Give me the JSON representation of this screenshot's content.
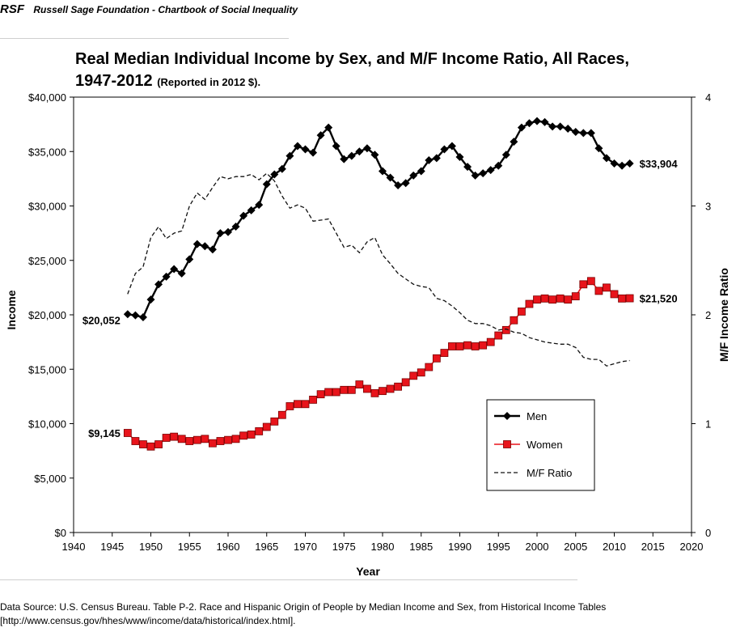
{
  "header": {
    "logo": "RSF",
    "title": "Russell Sage Foundation - Chartbook of Social Inequality"
  },
  "chart_data": {
    "type": "line",
    "title": "Real Median Individual Income by Sex, and M/F Income Ratio, All Races, 1947-2012",
    "subtitle": "(Reported in 2012 $).",
    "xlabel": "Year",
    "ylabel": "Income",
    "y2label": "M/F Income Ratio",
    "xlim": [
      1940,
      2020
    ],
    "ylim": [
      0,
      40000
    ],
    "y2lim": [
      0,
      4
    ],
    "xticks": [
      "1940",
      "1945",
      "1950",
      "1955",
      "1960",
      "1965",
      "1970",
      "1975",
      "1980",
      "1985",
      "1990",
      "1995",
      "2000",
      "2005",
      "2010",
      "2015",
      "2020"
    ],
    "yticks": [
      "$0",
      "$5,000",
      "$10,000",
      "$15,000",
      "$20,000",
      "$25,000",
      "$30,000",
      "$35,000",
      "$40,000"
    ],
    "y2ticks": [
      "0",
      "1",
      "2",
      "3",
      "4"
    ],
    "legend_position": "lower-right",
    "x": [
      1947,
      1948,
      1949,
      1950,
      1951,
      1952,
      1953,
      1954,
      1955,
      1956,
      1957,
      1958,
      1959,
      1960,
      1961,
      1962,
      1963,
      1964,
      1965,
      1966,
      1967,
      1968,
      1969,
      1970,
      1971,
      1972,
      1973,
      1974,
      1975,
      1976,
      1977,
      1978,
      1979,
      1980,
      1981,
      1982,
      1983,
      1984,
      1985,
      1986,
      1987,
      1988,
      1989,
      1990,
      1991,
      1992,
      1993,
      1994,
      1995,
      1996,
      1997,
      1998,
      1999,
      2000,
      2001,
      2002,
      2003,
      2004,
      2005,
      2006,
      2007,
      2008,
      2009,
      2010,
      2011,
      2012
    ],
    "series": [
      {
        "name": "Men",
        "color": "#000000",
        "marker": "diamond",
        "values": [
          20052,
          19950,
          19780,
          21400,
          22800,
          23500,
          24200,
          23800,
          25100,
          26500,
          26300,
          26000,
          27500,
          27600,
          28100,
          29100,
          29600,
          30100,
          32000,
          32900,
          33400,
          34600,
          35500,
          35200,
          34900,
          36500,
          37200,
          35500,
          34300,
          34600,
          35000,
          35300,
          34700,
          33200,
          32600,
          31900,
          32100,
          32800,
          33200,
          34200,
          34400,
          35200,
          35500,
          34500,
          33600,
          32800,
          33000,
          33300,
          33700,
          34700,
          35900,
          37200,
          37600,
          37800,
          37700,
          37300,
          37300,
          37100,
          36800,
          36700,
          36700,
          35300,
          34400,
          33900,
          33700,
          33904
        ]
      },
      {
        "name": "Women",
        "color": "#e8141b",
        "marker": "square",
        "values": [
          9145,
          8400,
          8100,
          7900,
          8100,
          8700,
          8800,
          8600,
          8400,
          8500,
          8600,
          8200,
          8400,
          8500,
          8600,
          8900,
          9000,
          9300,
          9700,
          10200,
          10800,
          11600,
          11800,
          11800,
          12200,
          12700,
          12900,
          12900,
          13100,
          13100,
          13600,
          13200,
          12800,
          13000,
          13200,
          13400,
          13800,
          14400,
          14700,
          15200,
          16000,
          16500,
          17100,
          17100,
          17200,
          17100,
          17200,
          17500,
          18100,
          18600,
          19500,
          20300,
          21000,
          21400,
          21500,
          21400,
          21500,
          21400,
          21700,
          22800,
          23100,
          22200,
          22500,
          21900,
          21500,
          21520
        ]
      },
      {
        "name": "M/F Ratio",
        "color": "#000000",
        "style": "dashed",
        "values": [
          2.19,
          2.38,
          2.44,
          2.71,
          2.81,
          2.7,
          2.75,
          2.77,
          3.0,
          3.12,
          3.06,
          3.17,
          3.27,
          3.25,
          3.27,
          3.27,
          3.29,
          3.24,
          3.3,
          3.23,
          3.09,
          2.98,
          3.01,
          2.98,
          2.86,
          2.87,
          2.88,
          2.75,
          2.62,
          2.64,
          2.57,
          2.67,
          2.71,
          2.55,
          2.47,
          2.38,
          2.33,
          2.28,
          2.26,
          2.25,
          2.15,
          2.13,
          2.08,
          2.02,
          1.95,
          1.92,
          1.92,
          1.9,
          1.86,
          1.87,
          1.84,
          1.83,
          1.79,
          1.77,
          1.75,
          1.74,
          1.73,
          1.73,
          1.7,
          1.61,
          1.59,
          1.59,
          1.53,
          1.55,
          1.57,
          1.58
        ]
      }
    ],
    "annotations": [
      {
        "text": "$20,052",
        "x": 1947,
        "y": 20052,
        "anchor": "left"
      },
      {
        "text": "$33,904",
        "x": 2012,
        "y": 33904,
        "anchor": "right"
      },
      {
        "text": "$9,145",
        "x": 1947,
        "y": 9145,
        "anchor": "left"
      },
      {
        "text": "$21,520",
        "x": 2012,
        "y": 21520,
        "anchor": "right"
      }
    ]
  },
  "source": "Data Source: U.S. Census Bureau. Table P-2. Race and Hispanic Origin of People by Median Income and Sex, from Historical Income Tables [http://www.census.gov/hhes/www/income/data/historical/index.html]."
}
